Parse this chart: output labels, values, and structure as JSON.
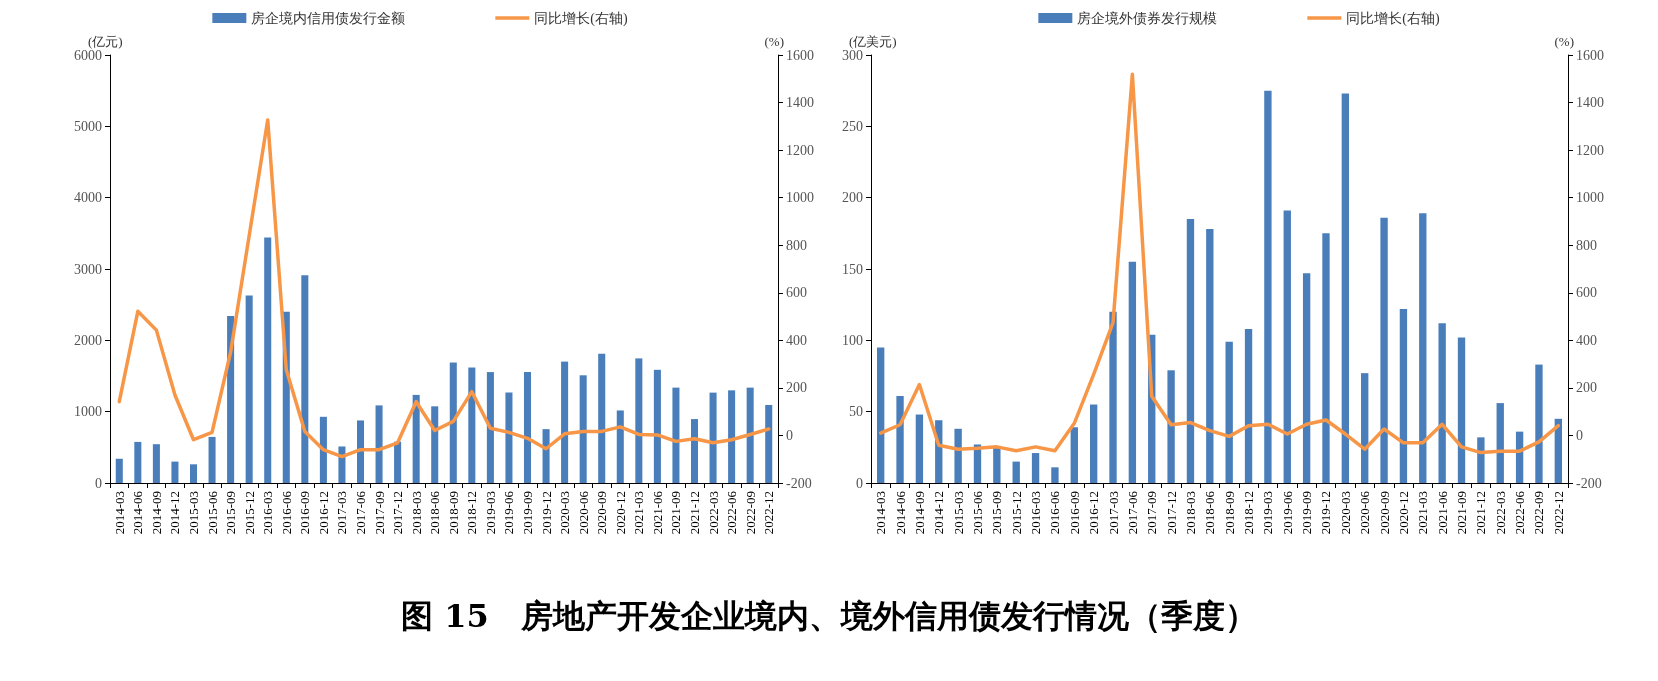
{
  "chart_data": [
    {
      "type": "bar",
      "ylabel": "(亿元)",
      "y2label": "(%)",
      "categories": [
        "2014-03",
        "2014-06",
        "2014-09",
        "2014-12",
        "2015-03",
        "2015-06",
        "2015-09",
        "2015-12",
        "2016-03",
        "2016-06",
        "2016-09",
        "2016-12",
        "2017-03",
        "2017-06",
        "2017-09",
        "2017-12",
        "2018-03",
        "2018-06",
        "2018-09",
        "2018-12",
        "2019-03",
        "2019-06",
        "2019-09",
        "2019-12",
        "2020-03",
        "2020-06",
        "2020-09",
        "2020-12",
        "2021-03",
        "2021-06",
        "2021-09",
        "2021-12",
        "2022-03",
        "2022-06",
        "2022-09",
        "2022-12"
      ],
      "series": [
        {
          "name": "房企境内信用债发行金额",
          "type": "bar",
          "color": "#4a7ebb",
          "values": [
            340,
            576,
            544,
            300,
            262,
            646,
            2342,
            2630,
            3442,
            2400,
            2911,
            928,
            512,
            877,
            1088,
            580,
            1235,
            1075,
            1689,
            1619,
            1555,
            1267,
            1555,
            755,
            1702,
            1510,
            1811,
            1017,
            1747,
            1587,
            1337,
            896,
            1267,
            1299,
            1337,
            1094
          ]
        },
        {
          "name": "同比增长(右轴)",
          "type": "line",
          "axis": "y2",
          "color": "#f79646",
          "values": [
            142,
            522,
            443,
            170,
            -18,
            13,
            350,
            840,
            1327,
            276,
            17,
            -60,
            -89,
            -60,
            -60,
            -31,
            142,
            21,
            59,
            184,
            30,
            13,
            -12,
            -56,
            7,
            17,
            17,
            36,
            4,
            2,
            -25,
            -14,
            -31,
            -18,
            4,
            27
          ]
        }
      ],
      "ylim": [
        0,
        6000
      ],
      "yticks": [
        0,
        1000,
        2000,
        3000,
        4000,
        5000,
        6000
      ],
      "y2lim": [
        -200,
        1600
      ],
      "y2ticks": [
        -200,
        0,
        200,
        400,
        600,
        800,
        1000,
        1200,
        1400,
        1600
      ],
      "grid": false,
      "legend": "top",
      "marker": "none",
      "line_style": "solid"
    },
    {
      "type": "bar",
      "ylabel": "(亿美元)",
      "y2label": "(%)",
      "categories": [
        "2014-03",
        "2014-06",
        "2014-09",
        "2014-12",
        "2015-03",
        "2015-06",
        "2015-09",
        "2015-12",
        "2016-03",
        "2016-06",
        "2016-09",
        "2016-12",
        "2017-03",
        "2017-06",
        "2017-09",
        "2017-12",
        "2018-03",
        "2018-06",
        "2018-09",
        "2018-12",
        "2019-03",
        "2019-06",
        "2019-09",
        "2019-12",
        "2020-03",
        "2020-06",
        "2020-09",
        "2020-12",
        "2021-03",
        "2021-06",
        "2021-09",
        "2021-12",
        "2022-03",
        "2022-06",
        "2022-09",
        "2022-12"
      ],
      "series": [
        {
          "name": "房企境外债券发行规模",
          "type": "bar",
          "color": "#4a7ebb",
          "values": [
            95,
            61,
            48,
            44,
            38,
            27,
            25,
            15,
            21,
            11,
            39,
            55,
            120,
            155,
            104,
            79,
            185,
            178,
            99,
            108,
            275,
            191,
            147,
            175,
            273,
            77,
            186,
            122,
            189,
            112,
            102,
            32,
            56,
            36,
            83,
            45
          ]
        },
        {
          "name": "同比增长(右轴)",
          "type": "line",
          "axis": "y2",
          "color": "#f79646",
          "values": [
            10,
            45,
            214,
            -41,
            -58,
            -54,
            -48,
            -64,
            -48,
            -64,
            51,
            257,
            474,
            1519,
            165,
            45,
            54,
            20,
            -4,
            41,
            47,
            6,
            47,
            65,
            6,
            -58,
            27,
            -31,
            -31,
            47,
            -48,
            -72,
            -66,
            -66,
            -27,
            41
          ]
        }
      ],
      "ylim": [
        0,
        300
      ],
      "yticks": [
        0,
        50,
        100,
        150,
        200,
        250,
        300
      ],
      "y2lim": [
        -200,
        1600
      ],
      "y2ticks": [
        -200,
        0,
        200,
        400,
        600,
        800,
        1000,
        1200,
        1400,
        1600
      ],
      "grid": false,
      "legend": "top",
      "marker": "none",
      "line_style": "solid"
    },
    {
      "type": "other",
      "title": "图 15　房地产开发企业境内、境外信用债发行情况（季度）"
    }
  ]
}
